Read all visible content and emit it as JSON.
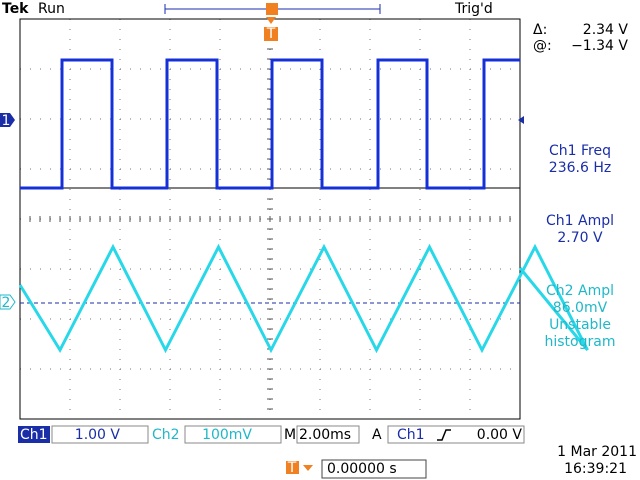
{
  "header": {
    "brand": "Tek",
    "status": "Run",
    "trigger_status": "Trig'd"
  },
  "cursor": {
    "delta_label": "Δ:",
    "delta": "2.34 V",
    "at_label": "@:",
    "at": "−1.34 V"
  },
  "measurements": [
    {
      "label": "Ch1 Freq",
      "value": "236.6 Hz"
    },
    {
      "label": "Ch1 Ampl",
      "value": "2.70 V"
    },
    {
      "label": "Ch2 Ampl",
      "value": "86.0mV",
      "notes": [
        "Unstable",
        "histogram"
      ]
    }
  ],
  "channel_markers": [
    "1",
    "2"
  ],
  "settings": {
    "ch1": {
      "name": "Ch1",
      "scale": "1.00 V"
    },
    "ch2": {
      "name": "Ch2",
      "scale": "100mV"
    },
    "timebase": {
      "prefix": "M",
      "value": "2.00ms"
    },
    "trigger": {
      "mode": "A",
      "source": "Ch1",
      "level": "0.00 V"
    }
  },
  "footer": {
    "position": "0.00000 s",
    "date": "1 Mar 2011",
    "time": "16:39:21"
  }
}
